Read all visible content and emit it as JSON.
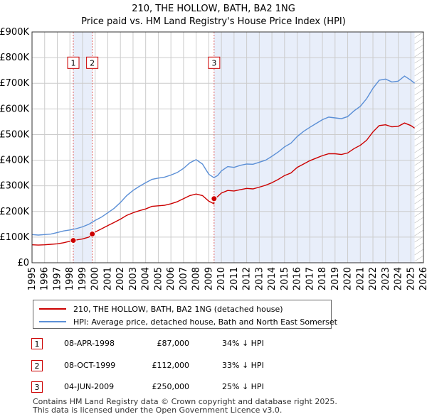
{
  "chart_data": {
    "type": "line",
    "title": "210, THE HOLLOW, BATH, BA2 1NG",
    "subtitle": "Price paid vs. HM Land Registry's House Price Index (HPI)",
    "xlim": [
      1995,
      2026
    ],
    "ylim": [
      0,
      900000
    ],
    "x_ticks": [
      1995,
      1996,
      1997,
      1998,
      1999,
      2000,
      2001,
      2002,
      2003,
      2004,
      2005,
      2006,
      2007,
      2008,
      2009,
      2010,
      2011,
      2012,
      2013,
      2014,
      2015,
      2016,
      2017,
      2018,
      2019,
      2020,
      2021,
      2022,
      2023,
      2024,
      2025,
      2026
    ],
    "y_ticks": [
      {
        "value": 0,
        "label": "£0"
      },
      {
        "value": 100000,
        "label": "£100K"
      },
      {
        "value": 200000,
        "label": "£200K"
      },
      {
        "value": 300000,
        "label": "£300K"
      },
      {
        "value": 400000,
        "label": "£400K"
      },
      {
        "value": 500000,
        "label": "£500K"
      },
      {
        "value": 600000,
        "label": "£600K"
      },
      {
        "value": 700000,
        "label": "£700K"
      },
      {
        "value": 800000,
        "label": "£800K"
      },
      {
        "value": 900000,
        "label": "£900K"
      }
    ],
    "grid": true,
    "shaded_spans": [
      [
        1998.27,
        1999.77
      ],
      [
        2009.42,
        2025.3
      ]
    ],
    "forecast_start": 2025.3,
    "series": [
      {
        "name": "210, THE HOLLOW, BATH, BA2 1NG (detached house)",
        "color": "#cc0000",
        "points": [
          [
            1995.0,
            70000
          ],
          [
            1995.5,
            69000
          ],
          [
            1996.0,
            70000
          ],
          [
            1996.5,
            72000
          ],
          [
            1997.0,
            74000
          ],
          [
            1997.5,
            78000
          ],
          [
            1998.0,
            84000
          ],
          [
            1998.27,
            87000
          ],
          [
            1998.5,
            89000
          ],
          [
            1999.0,
            93000
          ],
          [
            1999.5,
            100000
          ],
          [
            1999.77,
            112000
          ],
          [
            2000.0,
            120000
          ],
          [
            2000.5,
            132000
          ],
          [
            2001.0,
            145000
          ],
          [
            2001.5,
            157000
          ],
          [
            2002.0,
            170000
          ],
          [
            2002.5,
            185000
          ],
          [
            2003.0,
            195000
          ],
          [
            2003.5,
            203000
          ],
          [
            2004.0,
            210000
          ],
          [
            2004.5,
            220000
          ],
          [
            2005.0,
            222000
          ],
          [
            2005.5,
            224000
          ],
          [
            2006.0,
            230000
          ],
          [
            2006.5,
            238000
          ],
          [
            2007.0,
            250000
          ],
          [
            2007.5,
            262000
          ],
          [
            2008.0,
            268000
          ],
          [
            2008.5,
            262000
          ],
          [
            2009.0,
            240000
          ],
          [
            2009.4,
            230000
          ],
          [
            2009.42,
            250000
          ],
          [
            2009.7,
            258000
          ],
          [
            2010.0,
            272000
          ],
          [
            2010.5,
            282000
          ],
          [
            2011.0,
            280000
          ],
          [
            2011.5,
            285000
          ],
          [
            2012.0,
            290000
          ],
          [
            2012.5,
            288000
          ],
          [
            2013.0,
            295000
          ],
          [
            2013.5,
            302000
          ],
          [
            2014.0,
            312000
          ],
          [
            2014.5,
            325000
          ],
          [
            2015.0,
            340000
          ],
          [
            2015.5,
            350000
          ],
          [
            2016.0,
            372000
          ],
          [
            2016.5,
            385000
          ],
          [
            2017.0,
            398000
          ],
          [
            2017.5,
            408000
          ],
          [
            2018.0,
            418000
          ],
          [
            2018.5,
            425000
          ],
          [
            2019.0,
            425000
          ],
          [
            2019.5,
            422000
          ],
          [
            2020.0,
            428000
          ],
          [
            2020.5,
            445000
          ],
          [
            2021.0,
            458000
          ],
          [
            2021.5,
            478000
          ],
          [
            2022.0,
            510000
          ],
          [
            2022.5,
            535000
          ],
          [
            2023.0,
            538000
          ],
          [
            2023.5,
            530000
          ],
          [
            2024.0,
            532000
          ],
          [
            2024.5,
            545000
          ],
          [
            2025.0,
            535000
          ],
          [
            2025.3,
            525000
          ]
        ]
      },
      {
        "name": "HPI: Average price, detached house, Bath and North East Somerset",
        "color": "#5b8fd6",
        "points": [
          [
            1995.0,
            110000
          ],
          [
            1995.5,
            108000
          ],
          [
            1996.0,
            110000
          ],
          [
            1996.5,
            112000
          ],
          [
            1997.0,
            118000
          ],
          [
            1997.5,
            124000
          ],
          [
            1998.0,
            128000
          ],
          [
            1998.5,
            133000
          ],
          [
            1999.0,
            140000
          ],
          [
            1999.5,
            150000
          ],
          [
            2000.0,
            165000
          ],
          [
            2000.5,
            178000
          ],
          [
            2001.0,
            195000
          ],
          [
            2001.5,
            212000
          ],
          [
            2002.0,
            235000
          ],
          [
            2002.5,
            262000
          ],
          [
            2003.0,
            282000
          ],
          [
            2003.5,
            298000
          ],
          [
            2004.0,
            312000
          ],
          [
            2004.5,
            325000
          ],
          [
            2005.0,
            330000
          ],
          [
            2005.5,
            334000
          ],
          [
            2006.0,
            342000
          ],
          [
            2006.5,
            352000
          ],
          [
            2007.0,
            368000
          ],
          [
            2007.5,
            390000
          ],
          [
            2008.0,
            402000
          ],
          [
            2008.5,
            385000
          ],
          [
            2009.0,
            345000
          ],
          [
            2009.4,
            332000
          ],
          [
            2009.7,
            340000
          ],
          [
            2010.0,
            358000
          ],
          [
            2010.5,
            375000
          ],
          [
            2011.0,
            372000
          ],
          [
            2011.5,
            380000
          ],
          [
            2012.0,
            385000
          ],
          [
            2012.5,
            384000
          ],
          [
            2013.0,
            392000
          ],
          [
            2013.5,
            400000
          ],
          [
            2014.0,
            415000
          ],
          [
            2014.5,
            432000
          ],
          [
            2015.0,
            452000
          ],
          [
            2015.5,
            466000
          ],
          [
            2016.0,
            492000
          ],
          [
            2016.5,
            512000
          ],
          [
            2017.0,
            528000
          ],
          [
            2017.5,
            543000
          ],
          [
            2018.0,
            558000
          ],
          [
            2018.5,
            568000
          ],
          [
            2019.0,
            565000
          ],
          [
            2019.5,
            562000
          ],
          [
            2020.0,
            570000
          ],
          [
            2020.5,
            592000
          ],
          [
            2021.0,
            610000
          ],
          [
            2021.5,
            640000
          ],
          [
            2022.0,
            680000
          ],
          [
            2022.5,
            712000
          ],
          [
            2023.0,
            716000
          ],
          [
            2023.5,
            705000
          ],
          [
            2024.0,
            708000
          ],
          [
            2024.5,
            728000
          ],
          [
            2025.0,
            712000
          ],
          [
            2025.3,
            700000
          ]
        ]
      }
    ],
    "transactions": [
      {
        "id": "1",
        "x": 1998.27,
        "price": 87000,
        "date": "08-APR-1998",
        "price_label": "£87,000",
        "hpi_label": "34% ↓ HPI"
      },
      {
        "id": "2",
        "x": 1999.77,
        "price": 112000,
        "date": "08-OCT-1999",
        "price_label": "£112,000",
        "hpi_label": "33% ↓ HPI"
      },
      {
        "id": "3",
        "x": 2009.42,
        "price": 250000,
        "date": "04-JUN-2009",
        "price_label": "£250,000",
        "hpi_label": "25% ↓ HPI"
      }
    ],
    "marker_label_y": 780000
  },
  "footer": {
    "line1": "Contains HM Land Registry data © Crown copyright and database right 2025.",
    "line2": "This data is licensed under the Open Government Licence v3.0."
  },
  "colors": {
    "price_line": "#cc0000",
    "hpi_line": "#5b8fd6",
    "shade": "#e8eefa",
    "grid": "#cccccc"
  }
}
